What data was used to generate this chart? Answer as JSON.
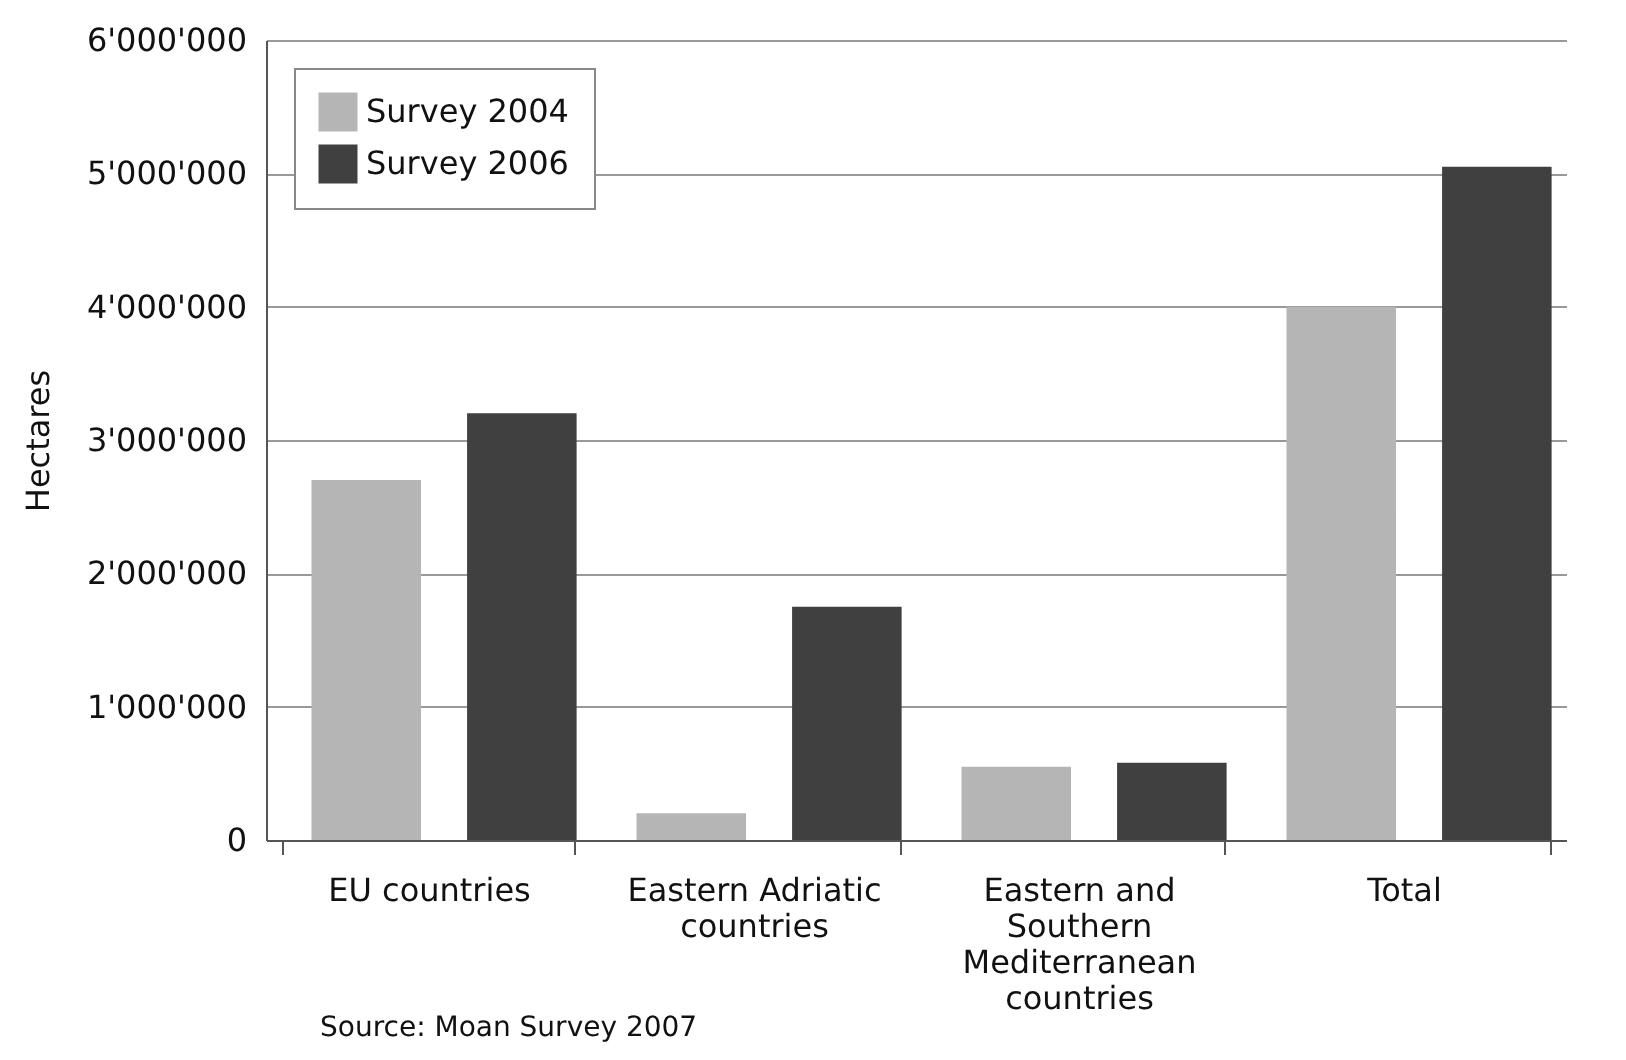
{
  "chart_data": {
    "type": "bar",
    "ylabel": "Hectares",
    "categories": [
      "EU countries",
      "Eastern Adriatic countries",
      "Eastern and Southern Mediterranean countries",
      "Total"
    ],
    "series": [
      {
        "name": "Survey 2004",
        "color": "#b5b5b5",
        "values": [
          2700000,
          200000,
          550000,
          4000000
        ]
      },
      {
        "name": "Survey 2006",
        "color": "#404040",
        "values": [
          3200000,
          1750000,
          580000,
          5050000
        ]
      }
    ],
    "ylim": [
      0,
      6000000
    ],
    "yticks": [
      {
        "value": 0,
        "label": "0"
      },
      {
        "value": 1000000,
        "label": "1'000'000"
      },
      {
        "value": 2000000,
        "label": "2'000'000"
      },
      {
        "value": 3000000,
        "label": "3'000'000"
      },
      {
        "value": 4000000,
        "label": "4'000'000"
      },
      {
        "value": 5000000,
        "label": "5'000'000"
      },
      {
        "value": 6000000,
        "label": "6'000'000"
      }
    ],
    "grid": "y",
    "legend": "top left",
    "annotations": [
      "Source: Moan Survey 2007"
    ]
  }
}
